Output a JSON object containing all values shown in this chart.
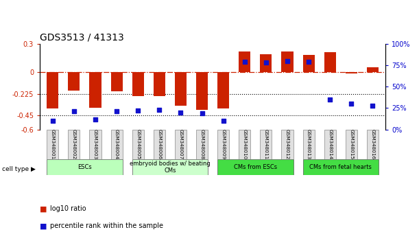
{
  "title": "GDS3513 / 41313",
  "samples": [
    "GSM348001",
    "GSM348002",
    "GSM348003",
    "GSM348004",
    "GSM348005",
    "GSM348006",
    "GSM348007",
    "GSM348008",
    "GSM348009",
    "GSM348010",
    "GSM348011",
    "GSM348012",
    "GSM348013",
    "GSM348014",
    "GSM348015",
    "GSM348016"
  ],
  "log10_ratio": [
    -0.38,
    -0.19,
    -0.37,
    -0.2,
    -0.25,
    -0.25,
    -0.35,
    -0.39,
    -0.38,
    0.22,
    0.19,
    0.22,
    0.18,
    0.21,
    -0.01,
    0.05
  ],
  "percentile_rank": [
    10,
    21,
    12,
    21,
    22,
    23,
    20,
    19,
    10,
    79,
    78,
    80,
    79,
    35,
    30,
    28
  ],
  "ylim_left": [
    -0.6,
    0.3
  ],
  "ylim_right": [
    0,
    100
  ],
  "yticks_left": [
    -0.6,
    -0.45,
    -0.225,
    0.0,
    0.3
  ],
  "yticks_right": [
    0,
    25,
    50,
    75,
    100
  ],
  "ytick_labels_left": [
    "-0.6",
    "-0.45",
    "-0.225",
    "0",
    "0.3"
  ],
  "ytick_labels_right": [
    "0%",
    "25%",
    "50%",
    "75%",
    "100%"
  ],
  "hlines": [
    -0.225,
    -0.45
  ],
  "zero_line": 0.0,
  "bar_color": "#cc2200",
  "dot_color": "#1111cc",
  "cell_type_groups": [
    {
      "label": "ESCs",
      "start": 0,
      "end": 3,
      "color": "#bbffbb"
    },
    {
      "label": "embryoid bodies w/ beating\nCMs",
      "start": 4,
      "end": 7,
      "color": "#ccffcc"
    },
    {
      "label": "CMs from ESCs",
      "start": 8,
      "end": 11,
      "color": "#44dd44"
    },
    {
      "label": "CMs from fetal hearts",
      "start": 12,
      "end": 15,
      "color": "#44dd44"
    }
  ],
  "cell_type_label": "cell type",
  "legend_items": [
    {
      "label": "log10 ratio",
      "color": "#cc2200"
    },
    {
      "label": "percentile rank within the sample",
      "color": "#1111cc"
    }
  ],
  "bar_width": 0.55,
  "dot_size": 18,
  "tick_label_fontsize": 7,
  "title_fontsize": 10,
  "ylabel_left_color": "#cc2200",
  "ylabel_right_color": "#0000cc"
}
